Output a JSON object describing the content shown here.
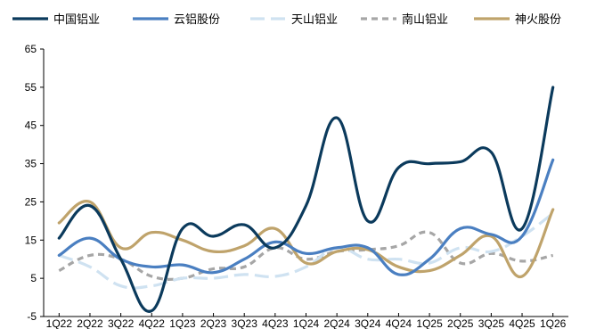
{
  "chart_data": {
    "type": "line",
    "categories": [
      "1Q22",
      "2Q22",
      "3Q22",
      "4Q22",
      "1Q23",
      "2Q23",
      "3Q23",
      "4Q23",
      "1Q24",
      "2Q24",
      "3Q24",
      "4Q24",
      "1Q25",
      "2Q25",
      "3Q25",
      "4Q25",
      "1Q26"
    ],
    "ylim": [
      -5,
      65
    ],
    "yticks": [
      "65",
      "55",
      "45",
      "35",
      "25",
      "15",
      "5",
      "-5"
    ],
    "grid": false,
    "legend_position": "top",
    "series": [
      {
        "name": "中国铝业",
        "color": "#0b3a5c",
        "dash": "solid",
        "values": [
          15.5,
          24,
          10,
          -3.5,
          18,
          16,
          19,
          13,
          24,
          47,
          20,
          34,
          35,
          35.5,
          38,
          18,
          55
        ]
      },
      {
        "name": "云铝股份",
        "color": "#4a7fc1",
        "dash": "solid",
        "values": [
          11,
          15.5,
          10,
          8,
          8.5,
          6.5,
          10,
          14.5,
          11.5,
          13,
          13,
          6,
          10,
          18,
          16.5,
          16,
          36
        ]
      },
      {
        "name": "天山铝业",
        "color": "#cfe2f1",
        "dash": "long",
        "values": [
          11,
          8,
          3,
          3,
          5,
          5,
          6,
          5.5,
          8,
          13,
          10,
          10,
          9,
          13,
          12,
          16,
          22
        ]
      },
      {
        "name": "南山铝业",
        "color": "#a6a6a6",
        "dash": "short",
        "values": [
          7,
          11,
          10,
          5.5,
          5,
          7.5,
          8,
          13,
          10,
          12,
          12.5,
          13.5,
          17,
          9,
          11.5,
          9.5,
          11
        ]
      },
      {
        "name": "神火股份",
        "color": "#bfa36b",
        "dash": "solid",
        "values": [
          19.5,
          25,
          13,
          17,
          15,
          12,
          13.5,
          18,
          9,
          12,
          12.5,
          8,
          7,
          11,
          16,
          5.5,
          23
        ]
      }
    ]
  }
}
